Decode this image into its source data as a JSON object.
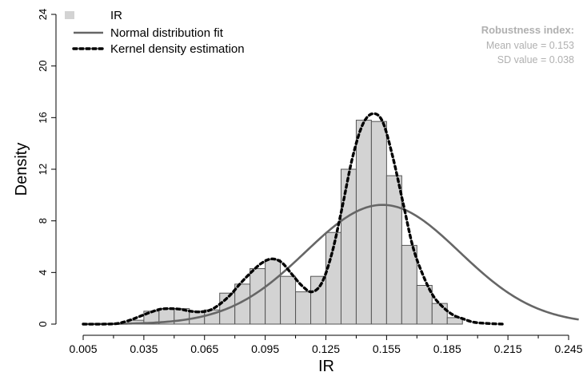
{
  "chart_data": {
    "type": "bar",
    "title": "",
    "xlabel": "IR",
    "ylabel": "Density",
    "xlim": [
      0.005,
      0.25
    ],
    "ylim": [
      0,
      24
    ],
    "x_ticks": [
      "0.005",
      "0.035",
      "0.065",
      "0.095",
      "0.125",
      "0.155",
      "0.185",
      "0.215",
      "0.245"
    ],
    "y_ticks": [
      "0",
      "4",
      "8",
      "12",
      "16",
      "20",
      "24"
    ],
    "bin_width": 0.0075,
    "histogram": {
      "name": "IR",
      "color": "#d3d3d3",
      "bins": [
        {
          "x0": 0.0275,
          "x1": 0.035,
          "value": 0.3
        },
        {
          "x0": 0.035,
          "x1": 0.0425,
          "value": 1.0
        },
        {
          "x0": 0.0425,
          "x1": 0.05,
          "value": 1.2
        },
        {
          "x0": 0.05,
          "x1": 0.0575,
          "value": 1.2
        },
        {
          "x0": 0.0575,
          "x1": 0.065,
          "value": 1.0
        },
        {
          "x0": 0.065,
          "x1": 0.0725,
          "value": 1.1
        },
        {
          "x0": 0.0725,
          "x1": 0.08,
          "value": 2.4
        },
        {
          "x0": 0.08,
          "x1": 0.0875,
          "value": 3.1
        },
        {
          "x0": 0.0875,
          "x1": 0.095,
          "value": 4.3
        },
        {
          "x0": 0.095,
          "x1": 0.1025,
          "value": 5.0
        },
        {
          "x0": 0.1025,
          "x1": 0.11,
          "value": 3.7
        },
        {
          "x0": 0.11,
          "x1": 0.1175,
          "value": 2.5
        },
        {
          "x0": 0.1175,
          "x1": 0.125,
          "value": 3.7
        },
        {
          "x0": 0.125,
          "x1": 0.1325,
          "value": 7.1
        },
        {
          "x0": 0.1325,
          "x1": 0.14,
          "value": 12.0
        },
        {
          "x0": 0.14,
          "x1": 0.1475,
          "value": 15.8
        },
        {
          "x0": 0.1475,
          "x1": 0.155,
          "value": 15.7
        },
        {
          "x0": 0.155,
          "x1": 0.1625,
          "value": 11.5
        },
        {
          "x0": 0.1625,
          "x1": 0.17,
          "value": 6.1
        },
        {
          "x0": 0.17,
          "x1": 0.1775,
          "value": 3.0
        },
        {
          "x0": 0.1775,
          "x1": 0.185,
          "value": 1.6
        },
        {
          "x0": 0.185,
          "x1": 0.1925,
          "value": 0.5
        }
      ]
    },
    "normal_fit": {
      "name": "Normal distribution fit",
      "color": "#666666",
      "mean": 0.153,
      "sd": 0.038,
      "scale": 0.88
    },
    "kde": {
      "name": "Kernel density estimation",
      "color": "#000000",
      "points": [
        [
          0.005,
          0.0
        ],
        [
          0.015,
          0.0
        ],
        [
          0.022,
          0.05
        ],
        [
          0.028,
          0.3
        ],
        [
          0.033,
          0.6
        ],
        [
          0.038,
          0.9
        ],
        [
          0.043,
          1.15
        ],
        [
          0.048,
          1.2
        ],
        [
          0.053,
          1.15
        ],
        [
          0.058,
          1.0
        ],
        [
          0.063,
          0.95
        ],
        [
          0.068,
          1.1
        ],
        [
          0.073,
          1.6
        ],
        [
          0.078,
          2.3
        ],
        [
          0.083,
          3.2
        ],
        [
          0.088,
          4.0
        ],
        [
          0.093,
          4.7
        ],
        [
          0.098,
          5.05
        ],
        [
          0.103,
          4.8
        ],
        [
          0.108,
          3.9
        ],
        [
          0.113,
          3.0
        ],
        [
          0.118,
          2.5
        ],
        [
          0.123,
          3.2
        ],
        [
          0.128,
          5.5
        ],
        [
          0.133,
          9.0
        ],
        [
          0.138,
          12.8
        ],
        [
          0.143,
          15.4
        ],
        [
          0.148,
          16.3
        ],
        [
          0.153,
          15.7
        ],
        [
          0.158,
          13.0
        ],
        [
          0.163,
          9.5
        ],
        [
          0.168,
          6.0
        ],
        [
          0.173,
          3.8
        ],
        [
          0.178,
          2.2
        ],
        [
          0.183,
          1.3
        ],
        [
          0.188,
          0.7
        ],
        [
          0.193,
          0.4
        ],
        [
          0.198,
          0.15
        ],
        [
          0.205,
          0.05
        ],
        [
          0.213,
          0.0
        ]
      ]
    },
    "legend": {
      "placement": "top-left",
      "entries": [
        {
          "label": "IR",
          "kind": "box"
        },
        {
          "label": "Normal distribution fit",
          "kind": "solid-line"
        },
        {
          "label": "Kernel density estimation",
          "kind": "dashed-line"
        }
      ]
    },
    "annotation": {
      "placement": "top-right",
      "heading": "Robustness index:",
      "lines": [
        "Mean value =  0.153",
        "SD value =  0.038"
      ],
      "color": "#b0b0b0"
    }
  }
}
